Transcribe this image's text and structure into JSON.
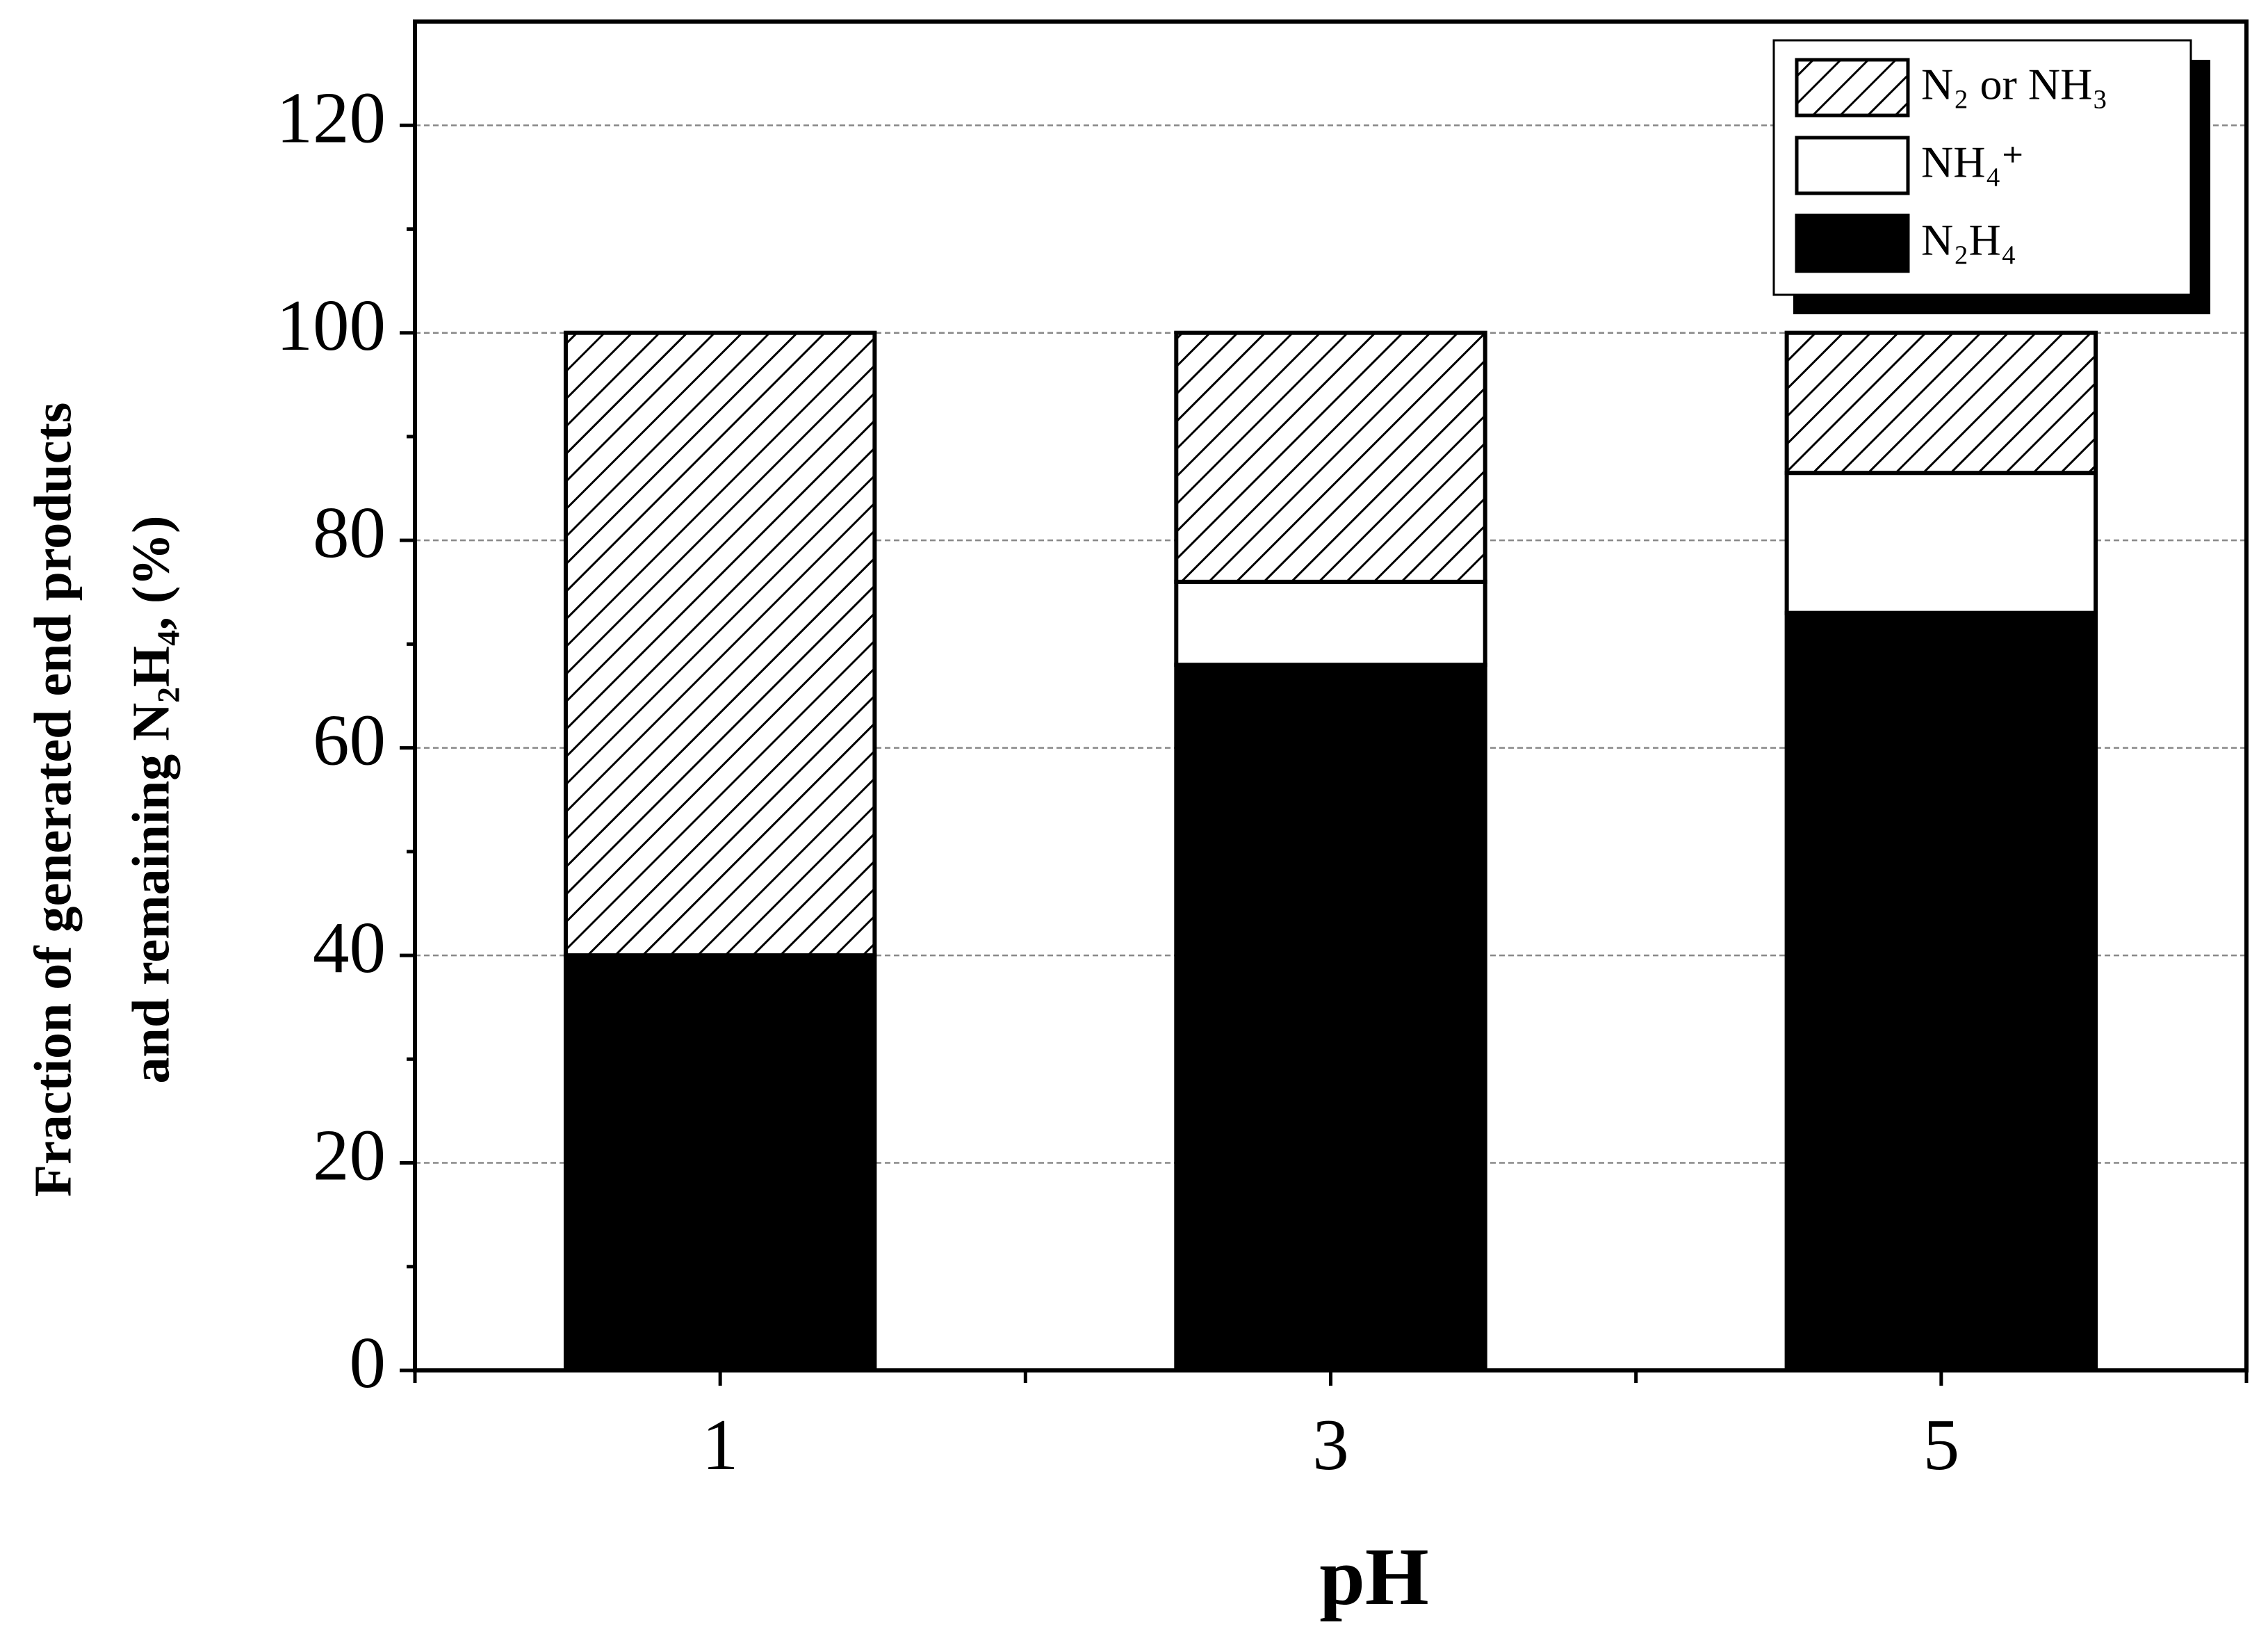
{
  "chart_data": {
    "type": "stacked_bar",
    "xlabel": "pH",
    "ylabel": [
      "Fraction of generated end products",
      "and remaining N₂H₄, (%)"
    ],
    "categories": [
      "1",
      "3",
      "5"
    ],
    "series": [
      {
        "name": "N₂H₄",
        "color": "#000000",
        "hatch": false,
        "values": [
          40,
          68,
          73
        ]
      },
      {
        "name": "NH₄⁺",
        "color": "#ffffff",
        "hatch": false,
        "values": [
          0,
          8,
          13.5
        ]
      },
      {
        "name": "N₂ or NH₃",
        "color": "#ffffff",
        "hatch": true,
        "values": [
          60,
          24,
          13.5
        ]
      }
    ],
    "ylim": [
      0,
      130
    ],
    "yticks": [
      0,
      20,
      40,
      60,
      80,
      100,
      120
    ],
    "grid": true,
    "legend": "upper right"
  }
}
